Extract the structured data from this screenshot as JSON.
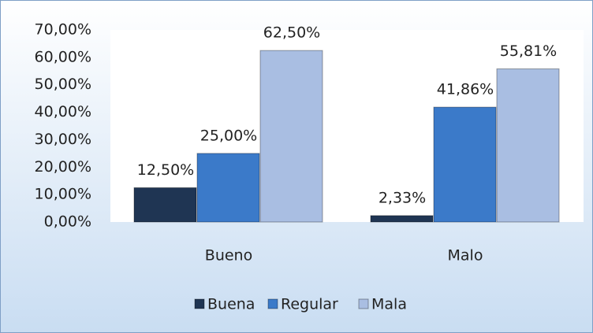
{
  "chart_data": {
    "type": "bar",
    "categories": [
      "Bueno",
      "Malo"
    ],
    "series": [
      {
        "name": "Buena",
        "color": "#1f3553",
        "values": [
          12.5,
          2.33
        ],
        "value_labels": [
          "12,50%",
          "2,33%"
        ]
      },
      {
        "name": "Regular",
        "color": "#3b7ac9",
        "values": [
          25,
          41.86
        ],
        "value_labels": [
          "25,00%",
          "41,86%"
        ]
      },
      {
        "name": "Mala",
        "color": "#a9bee2",
        "values": [
          62.5,
          55.81
        ],
        "value_labels": [
          "62,50%",
          "55,81%"
        ]
      }
    ],
    "ylim": [
      0,
      70
    ],
    "yticks": [
      {
        "value": 0,
        "label": "0,00%"
      },
      {
        "value": 10,
        "label": "10,00%"
      },
      {
        "value": 20,
        "label": "20,00%"
      },
      {
        "value": 30,
        "label": "30,00%"
      },
      {
        "value": 40,
        "label": "40,00%"
      },
      {
        "value": 50,
        "label": "50,00%"
      },
      {
        "value": 60,
        "label": "60,00%"
      },
      {
        "value": 70,
        "label": "70,00%"
      }
    ],
    "legend": "bottom"
  }
}
